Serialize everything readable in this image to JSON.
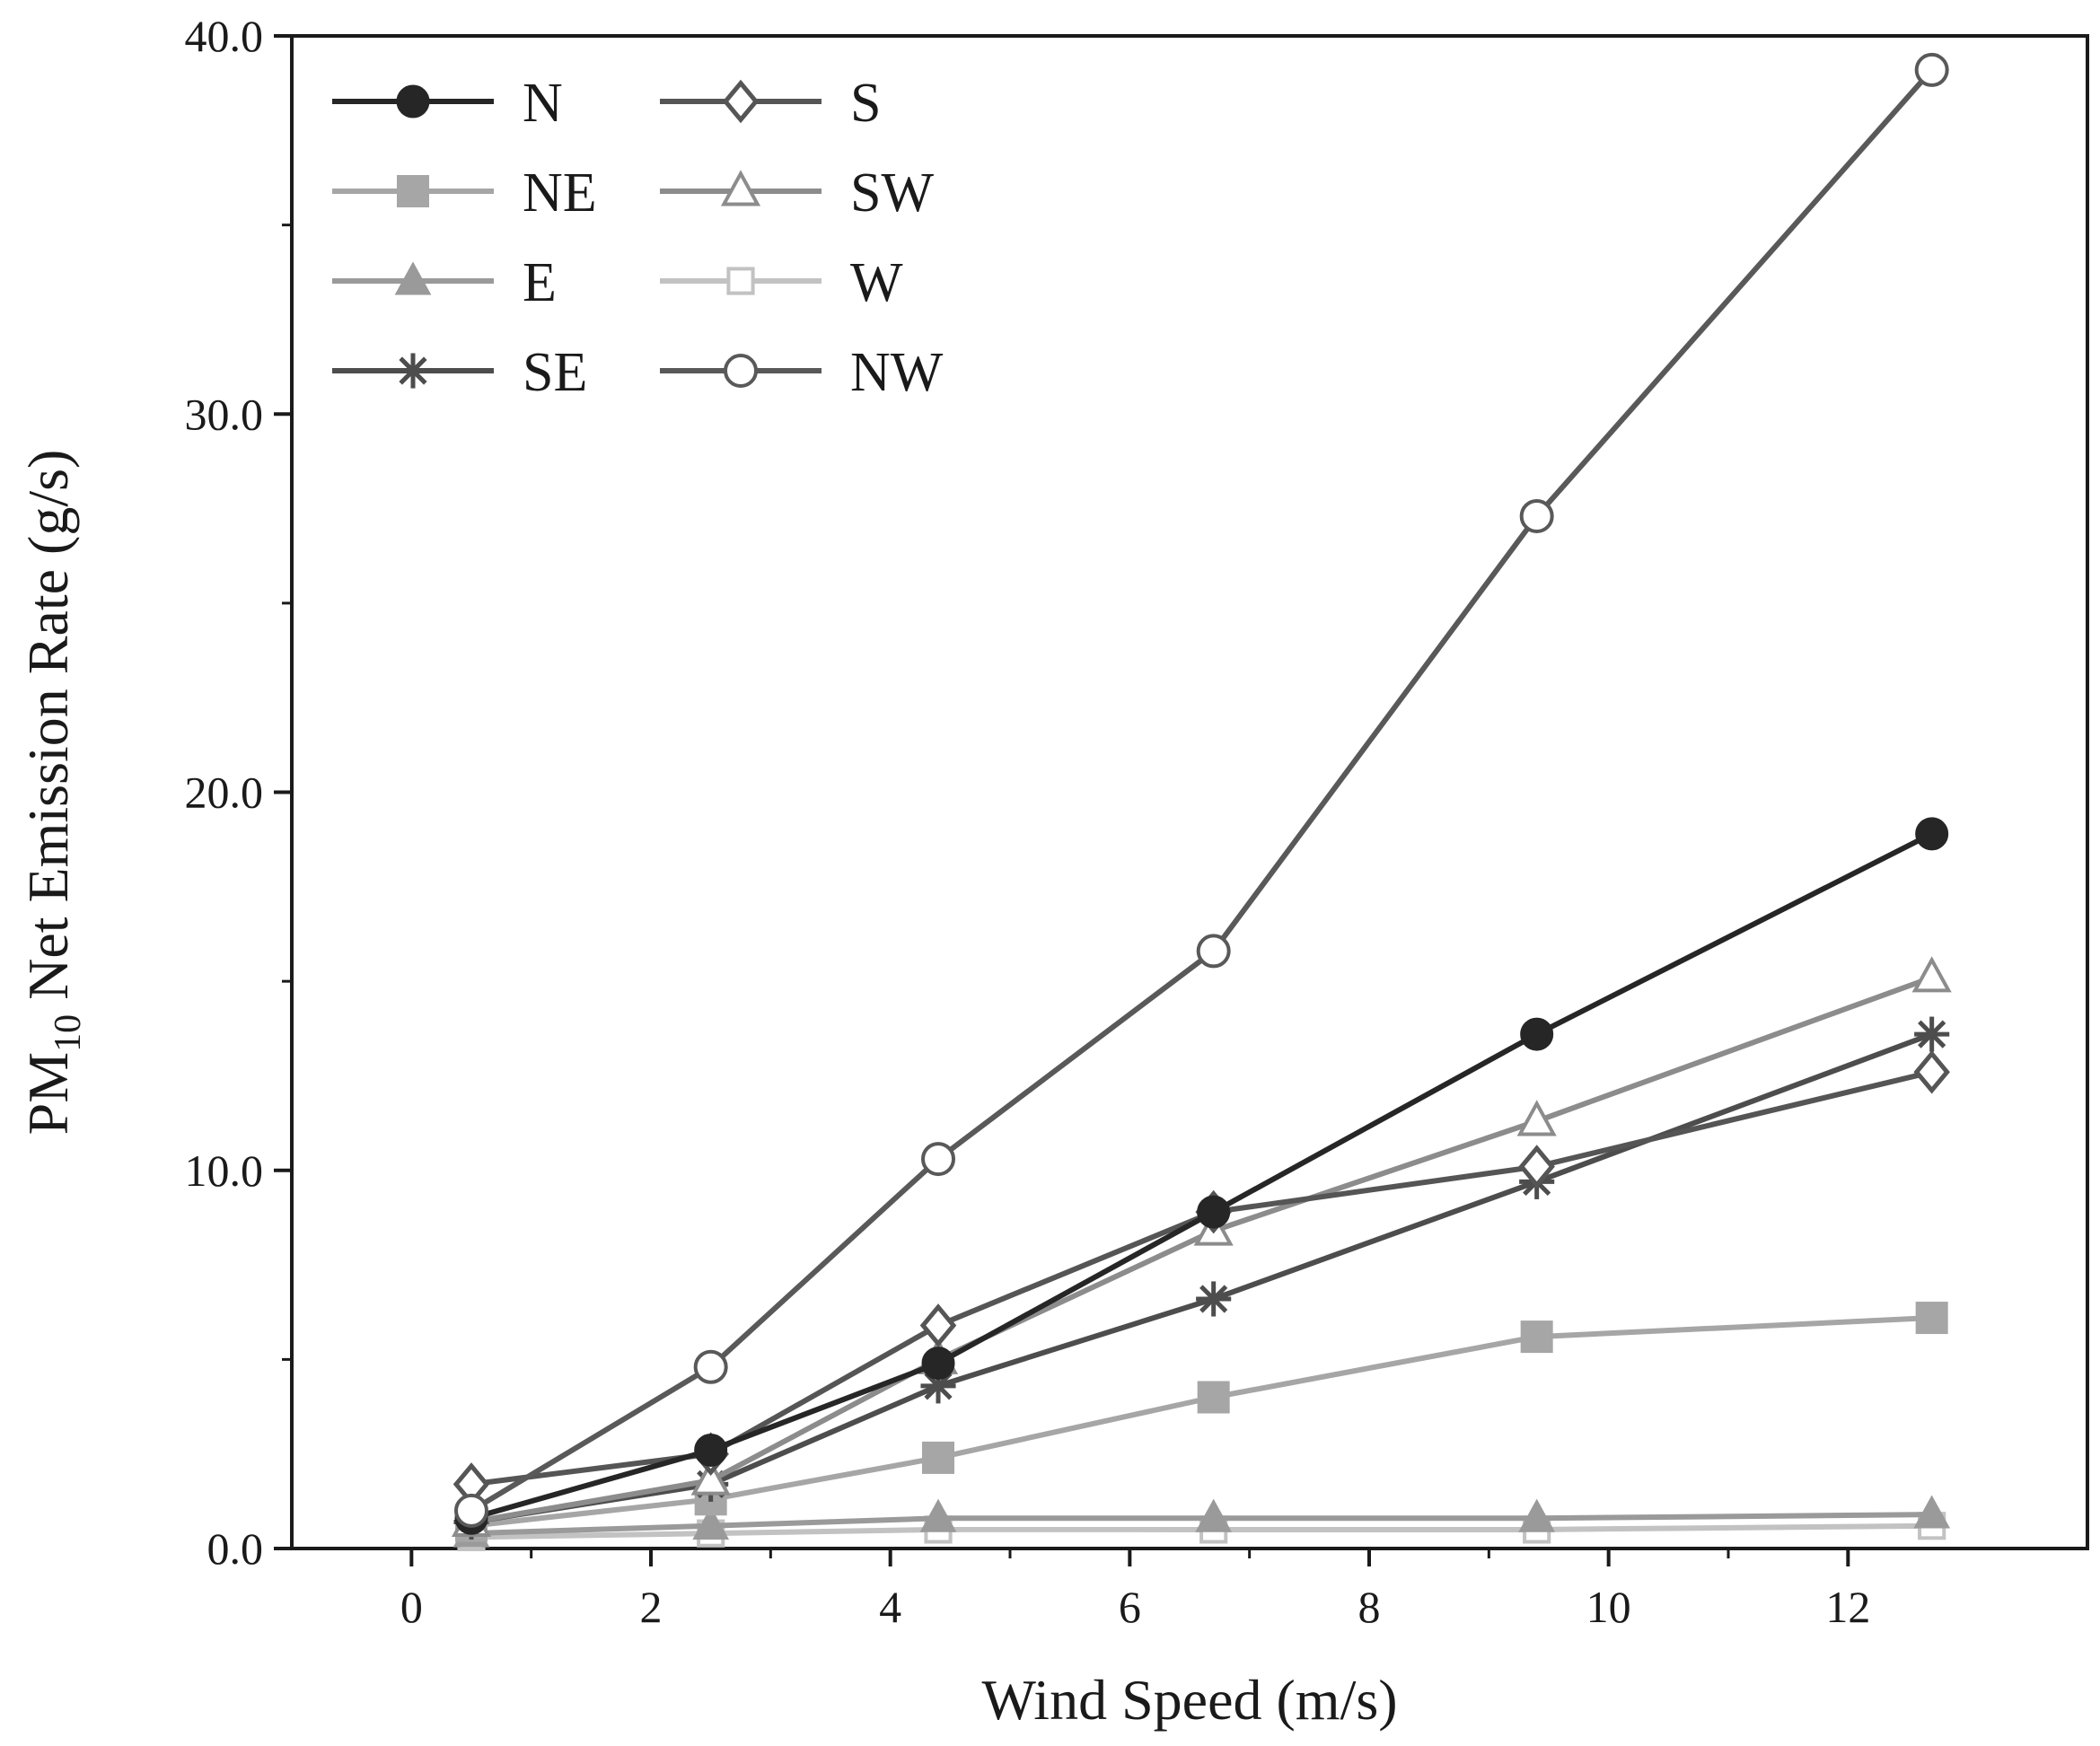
{
  "chart_data": {
    "type": "line",
    "title": "",
    "xlabel": "Wind Speed (m/s)",
    "ylabel": {
      "prefix": "PM",
      "subscript": "10",
      "suffix": " Net Emission Rate (g/s)"
    },
    "xlim": [
      -1,
      14
    ],
    "ylim": [
      0,
      40
    ],
    "xticks": [
      0,
      2,
      4,
      6,
      8,
      10,
      12
    ],
    "xtick_labels": [
      "0",
      "2",
      "4",
      "6",
      "8",
      "10",
      "12"
    ],
    "yticks": [
      0,
      10,
      20,
      30,
      40
    ],
    "ytick_labels": [
      "0.0",
      "10.0",
      "20.0",
      "30.0",
      "40.0"
    ],
    "legend_position": "top-left",
    "grid": false,
    "x": [
      0.5,
      2.5,
      4.4,
      6.7,
      9.4,
      12.7
    ],
    "series": [
      {
        "name": "N",
        "color": "#262626",
        "marker": "filled-circle",
        "values": [
          0.8,
          2.6,
          4.9,
          8.9,
          13.6,
          18.9
        ]
      },
      {
        "name": "NE",
        "color": "#a6a6a6",
        "marker": "filled-square",
        "values": [
          0.6,
          1.3,
          2.4,
          4.0,
          5.6,
          6.1
        ]
      },
      {
        "name": "E",
        "color": "#9a9a9a",
        "marker": "filled-triangle",
        "values": [
          0.4,
          0.6,
          0.8,
          0.8,
          0.8,
          0.9
        ]
      },
      {
        "name": "SE",
        "color": "#4d4d4d",
        "marker": "asterisk",
        "values": [
          0.7,
          1.7,
          4.3,
          6.6,
          9.7,
          13.6
        ]
      },
      {
        "name": "S",
        "color": "#555555",
        "marker": "open-diamond",
        "values": [
          1.7,
          2.5,
          5.9,
          8.9,
          10.1,
          12.6
        ]
      },
      {
        "name": "SW",
        "color": "#8c8c8c",
        "marker": "open-triangle",
        "values": [
          0.7,
          1.8,
          5.0,
          8.4,
          11.3,
          15.1
        ]
      },
      {
        "name": "W",
        "color": "#c2c2c2",
        "marker": "open-square",
        "values": [
          0.3,
          0.4,
          0.5,
          0.5,
          0.5,
          0.6
        ]
      },
      {
        "name": "NW",
        "color": "#595959",
        "marker": "open-circle",
        "values": [
          1.0,
          4.8,
          10.3,
          15.8,
          27.3,
          39.1
        ]
      }
    ]
  }
}
